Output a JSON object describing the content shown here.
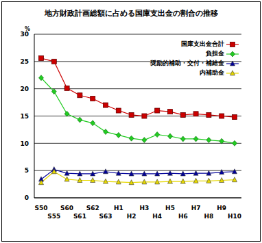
{
  "chart_data": {
    "type": "line",
    "title": "地方財政計画総額に占める国庫支出金の割合の推移",
    "y_label": "%",
    "categories": [
      "S50",
      "S55",
      "S60",
      "S61",
      "S62",
      "S63",
      "H1",
      "H2",
      "H3",
      "H4",
      "H5",
      "H6",
      "H7",
      "H8",
      "H9",
      "H10"
    ],
    "series": [
      {
        "name": "国庫支出金合計",
        "color": "#cc0000",
        "marker": "square",
        "values": [
          25.6,
          25.0,
          20.1,
          18.8,
          18.2,
          17.0,
          16.0,
          15.2,
          15.0,
          16.0,
          15.8,
          15.2,
          15.4,
          15.2,
          15.0,
          14.8
        ]
      },
      {
        "name": "負担金",
        "color": "#22cc22",
        "marker": "diamond",
        "values": [
          22.0,
          19.5,
          15.4,
          14.3,
          13.7,
          12.1,
          11.5,
          10.9,
          10.6,
          11.6,
          11.3,
          10.8,
          10.8,
          10.6,
          10.4,
          10.0
        ]
      },
      {
        "name": "奨励的補助・交付・補給金",
        "color": "#000099",
        "marker": "triangle",
        "values": [
          3.4,
          5.2,
          4.5,
          4.4,
          4.4,
          4.8,
          4.5,
          4.4,
          4.4,
          4.4,
          4.5,
          4.4,
          4.5,
          4.5,
          4.7,
          4.8
        ]
      },
      {
        "name": "内補助金",
        "color": "#e6d800",
        "marker": "triangle",
        "values": [
          2.8,
          4.8,
          3.4,
          3.2,
          3.2,
          3.0,
          2.9,
          2.8,
          2.9,
          2.9,
          3.0,
          3.0,
          3.1,
          3.1,
          3.2,
          3.3
        ]
      }
    ],
    "ylim": [
      0,
      30
    ],
    "yticks": [
      0,
      5,
      10,
      15,
      20,
      25,
      30
    ],
    "grid": true,
    "legend": "top right"
  }
}
